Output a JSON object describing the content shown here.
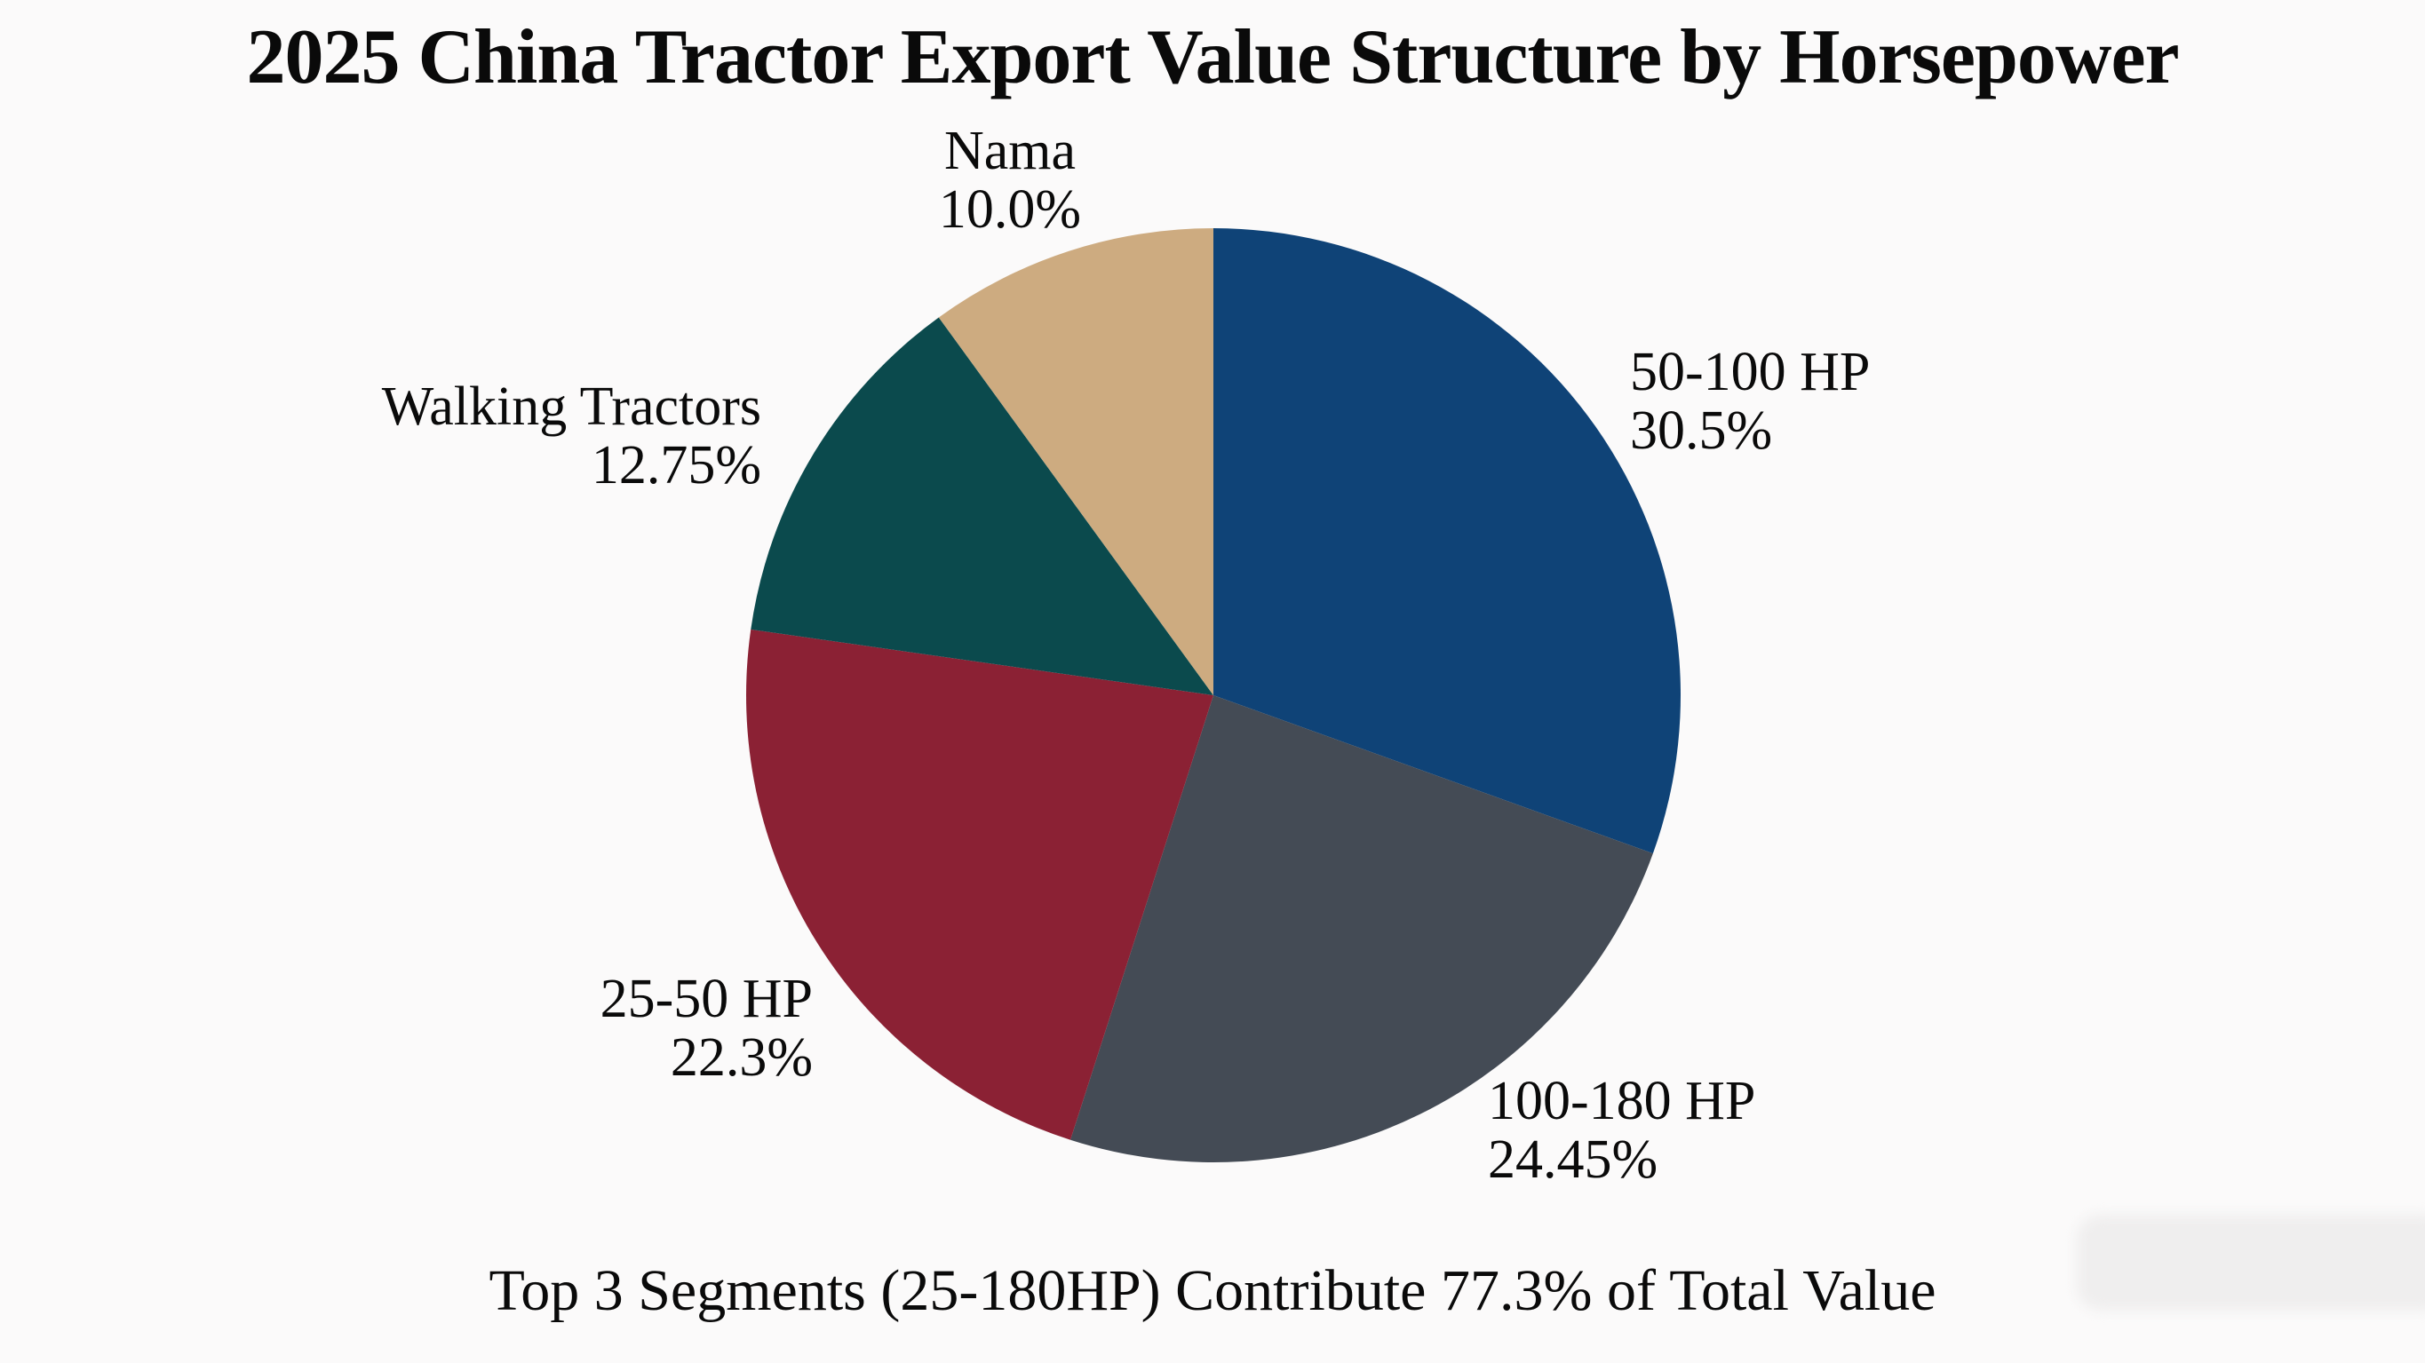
{
  "title": "2025 China Tractor Export Value Structure by Horsepower",
  "subtitle": "Top 3 Segments (25-180HP) Contribute 77.3% of Total Value",
  "chart_data": {
    "type": "pie",
    "title": "2025 China Tractor Export Value Structure by Horsepower",
    "annotation": "Top 3 Segments (25-180HP) Contribute 77.3% of Total Value",
    "start_angle": "top",
    "direction": "clockwise",
    "total_pct": 100,
    "slices": [
      {
        "name": "50-100 HP",
        "value_pct": 30.5,
        "pct_label": "30.5%",
        "color": "#0f4377"
      },
      {
        "name": "100-180 HP",
        "value_pct": 24.45,
        "pct_label": "24.45%",
        "color": "#444b55"
      },
      {
        "name": "25-50 HP",
        "value_pct": 22.3,
        "pct_label": "22.3%",
        "color": "#8b2134"
      },
      {
        "name": "Walking Tractors",
        "value_pct": 12.75,
        "pct_label": "12.75%",
        "color": "#0b4a4d"
      },
      {
        "name": "Nama",
        "value_pct": 10.0,
        "pct_label": "10.0%",
        "color": "#cdab80"
      }
    ]
  }
}
